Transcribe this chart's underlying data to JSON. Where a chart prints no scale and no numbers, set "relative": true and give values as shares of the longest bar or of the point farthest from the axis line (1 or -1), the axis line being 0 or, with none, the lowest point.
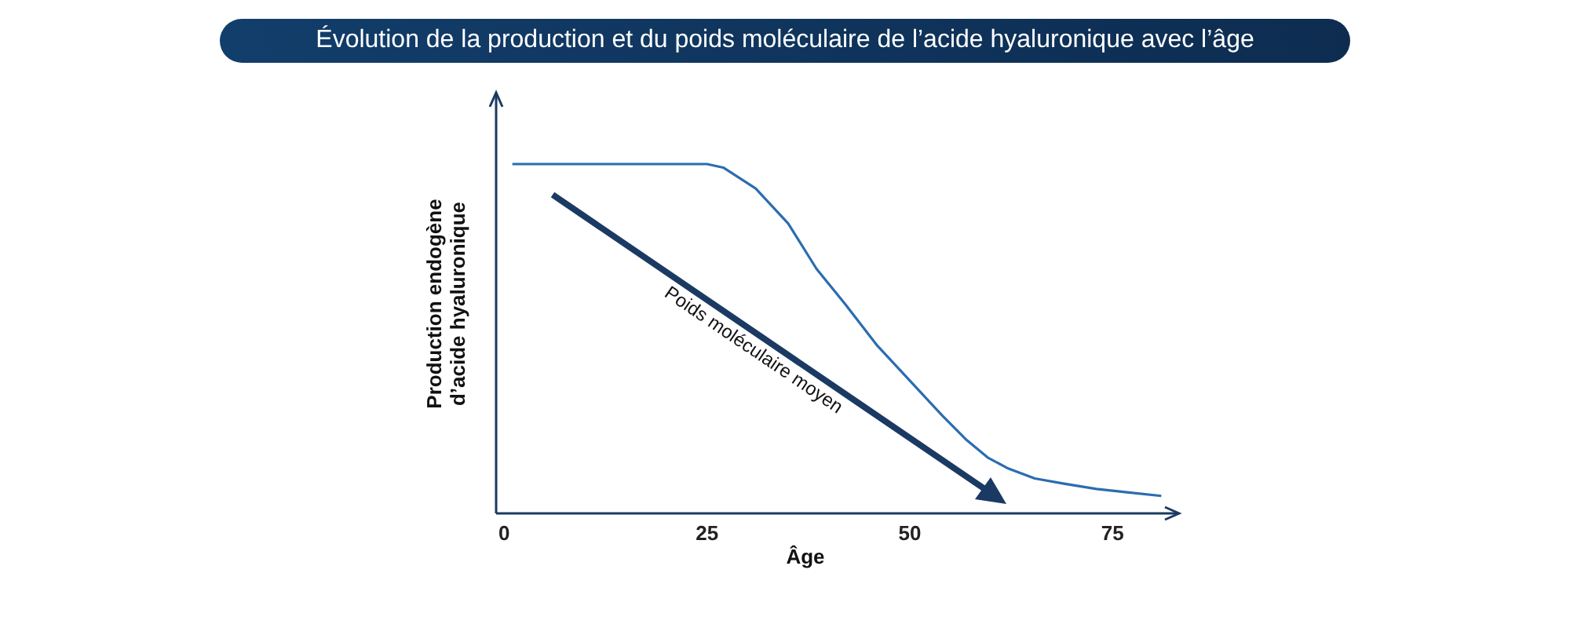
{
  "chart_data": {
    "type": "line",
    "title": "Évolution de la production et du poids moléculaire de l’acide hyaluronique avec l’âge",
    "xlabel": "Âge",
    "ylabel": "Production endogène\nd’acide hyaluronique",
    "relative": true,
    "tick_labels": "x",
    "x": [
      1,
      5,
      10,
      15,
      21,
      25,
      27,
      31,
      35,
      38.5,
      42,
      46,
      50,
      54,
      57,
      59.6,
      62,
      65.4,
      69,
      73,
      77,
      81
    ],
    "xlim": [
      -1,
      83
    ],
    "xticks": [
      0,
      25,
      50,
      75
    ],
    "marker": "none",
    "line_style": "solid",
    "series": [
      {
        "color": "#2a6db0",
        "values": [
          1,
          1,
          1,
          1,
          1,
          1,
          0.99,
          0.93,
          0.83,
          0.7,
          0.6,
          0.48,
          0.38,
          0.28,
          0.21,
          0.16,
          0.13,
          0.1,
          0.085,
          0.07,
          0.06,
          0.05
        ]
      }
    ],
    "annotations": [
      "Poids moléculaire moyen"
    ]
  }
}
